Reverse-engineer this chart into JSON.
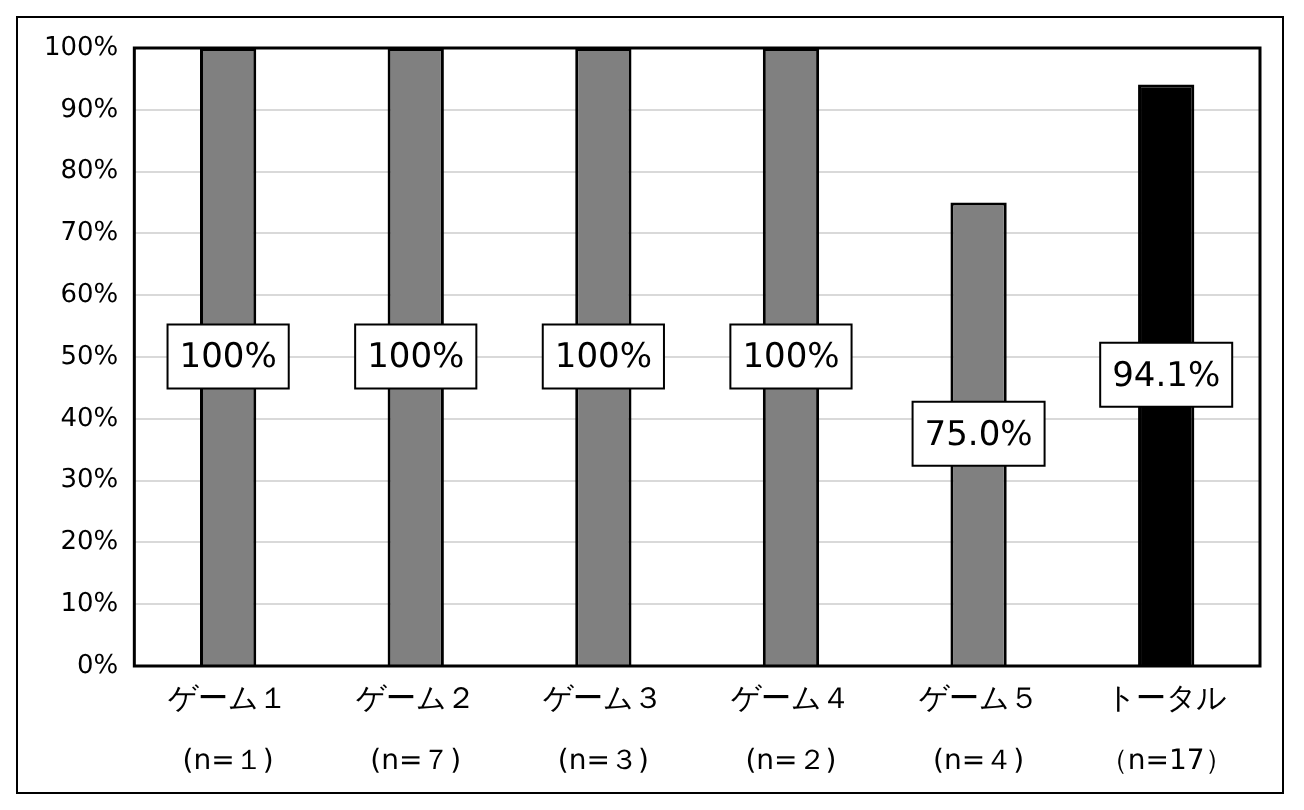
{
  "chart_data": {
    "type": "bar",
    "categories": [
      "ゲーム１",
      "ゲーム２",
      "ゲーム３",
      "ゲーム４",
      "ゲーム５",
      "トータル"
    ],
    "annotations": [
      "(n=１)",
      "(n=７)",
      "(n=３)",
      "(n=２)",
      "(n=４)",
      "（n=17）"
    ],
    "values": [
      100,
      100,
      100,
      100,
      75.0,
      94.1
    ],
    "colors": [
      "#808080",
      "#808080",
      "#808080",
      "#808080",
      "#808080",
      "#000000"
    ],
    "value_labels": [
      "100%",
      "100%",
      "100%",
      "100%",
      "75.0%",
      "94.1%"
    ],
    "ylim": [
      0,
      100
    ],
    "yticks": [
      {
        "value": 0,
        "label": "0%"
      },
      {
        "value": 10,
        "label": "10%"
      },
      {
        "value": 20,
        "label": "20%"
      },
      {
        "value": 30,
        "label": "30%"
      },
      {
        "value": 40,
        "label": "40%"
      },
      {
        "value": 50,
        "label": "50%"
      },
      {
        "value": 60,
        "label": "60%"
      },
      {
        "value": 70,
        "label": "70%"
      },
      {
        "value": 80,
        "label": "80%"
      },
      {
        "value": 90,
        "label": "90%"
      },
      {
        "value": 100,
        "label": "100%"
      }
    ],
    "grid": "y",
    "legend": false
  }
}
